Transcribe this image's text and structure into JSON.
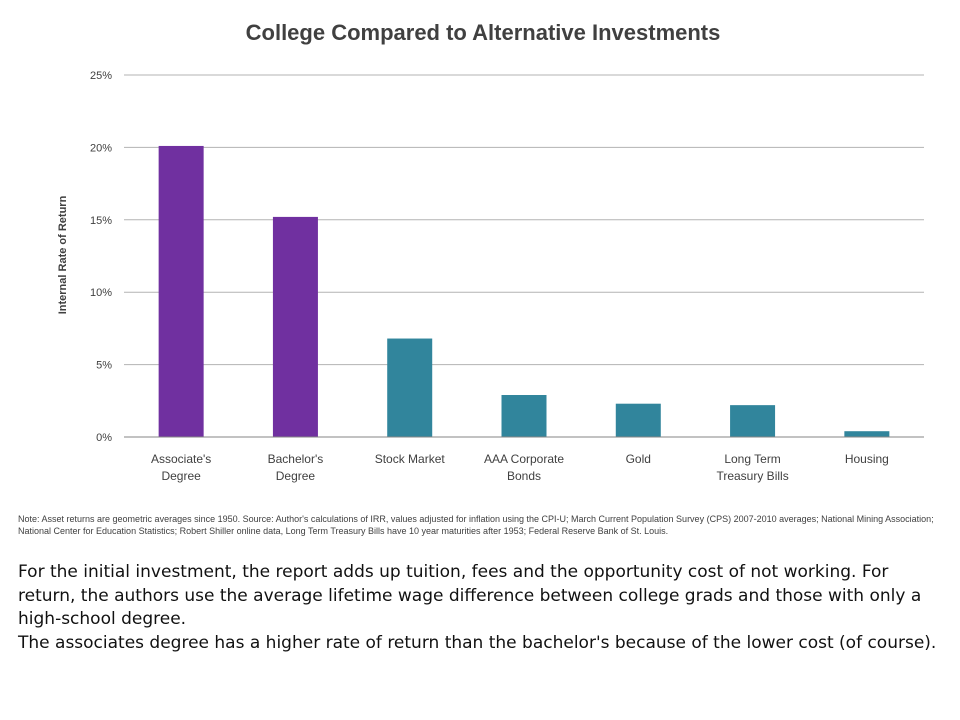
{
  "chart_data": {
    "type": "bar",
    "title": "College Compared to Alternative Investments",
    "ylabel": "Internal Rate of Return",
    "xlabel": "",
    "ylim": [
      0,
      25
    ],
    "yticks": [
      "0%",
      "5%",
      "10%",
      "15%",
      "20%",
      "25%"
    ],
    "ytick_values": [
      0,
      5,
      10,
      15,
      20,
      25
    ],
    "grid": true,
    "categories": [
      [
        "Associate's",
        "Degree"
      ],
      [
        "Bachelor's",
        "Degree"
      ],
      [
        "Stock Market"
      ],
      [
        "AAA Corporate",
        "Bonds"
      ],
      [
        "Gold"
      ],
      [
        "Long Term",
        "Treasury Bills"
      ],
      [
        "Housing"
      ]
    ],
    "values": [
      20.1,
      15.2,
      6.8,
      2.9,
      2.3,
      2.2,
      0.4
    ],
    "colors": [
      "#7030a0",
      "#7030a0",
      "#31859c",
      "#31859c",
      "#31859c",
      "#31859c",
      "#31859c"
    ],
    "note": "Note: Asset returns are geometric averages since 1950. Source: Author's calculations of IRR, values adjusted for inflation using the CPI-U; March Current Population Survey (CPS) 2007-2010 averages; National Mining Association; National Center for Education Statistics; Robert Shiller online data, Long Term Treasury Bills have 10 year maturities after 1953; Federal Reserve Bank of St. Louis."
  },
  "caption": {
    "paragraph_1": "For the initial investment, the report adds up tuition, fees and the opportunity cost of not working. For return, the authors use the average lifetime wage difference between college grads and those with only a high-school degree.",
    "paragraph_2": "The associates degree has a higher rate of return than the bachelor's because of the lower cost (of course)."
  }
}
